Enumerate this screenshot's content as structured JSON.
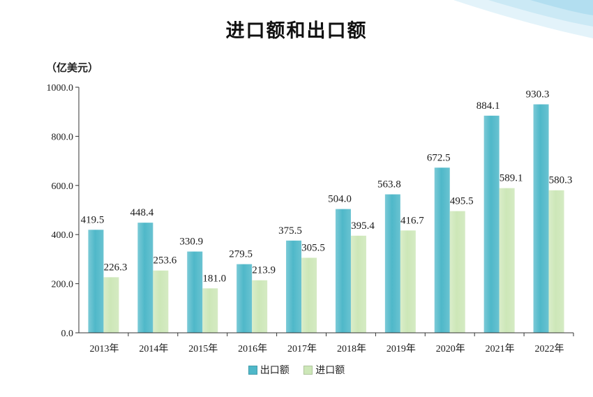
{
  "colors": {
    "export_bar": "#4fb8c9",
    "import_bar": "#cde7b8",
    "axis": "#333333",
    "corner": "#bfe3f2"
  },
  "chart_data": {
    "type": "bar",
    "title": "进口额和出口额",
    "unit": "（亿美元）",
    "categories": [
      "2013年",
      "2014年",
      "2015年",
      "2016年",
      "2017年",
      "2018年",
      "2019年",
      "2020年",
      "2021年",
      "2022年"
    ],
    "series": [
      {
        "name": "出口额",
        "values": [
          419.5,
          448.4,
          330.9,
          279.5,
          375.5,
          504.0,
          563.8,
          672.5,
          884.1,
          930.3
        ]
      },
      {
        "name": "进口额",
        "values": [
          226.3,
          253.6,
          181.0,
          213.9,
          305.5,
          395.4,
          416.7,
          495.5,
          589.1,
          580.3
        ]
      }
    ],
    "yticks": [
      "0.0",
      "200.0",
      "400.0",
      "600.0",
      "800.0",
      "1000.0"
    ],
    "ylim": [
      0,
      1000
    ],
    "grid": false,
    "legend_position": "bottom-center"
  }
}
